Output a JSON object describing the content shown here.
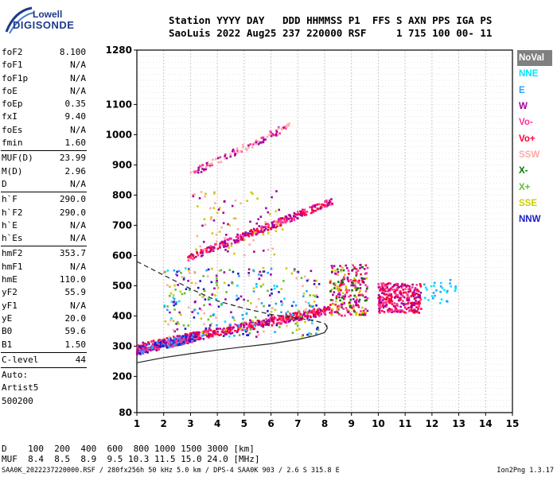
{
  "logo": {
    "line1": "Lowell",
    "line2": "DIGISONDE"
  },
  "header": {
    "line1": "Station YYYY DAY   DDD HHMMSS P1  FFS S AXN PPS IGA PS",
    "line2": "SaoLuis 2022 Aug25 237 220000 RSF     1 715 100 00- 11"
  },
  "params": [
    {
      "label": "foF2",
      "value": "8.100"
    },
    {
      "label": "foF1",
      "value": "N/A"
    },
    {
      "label": "foF1p",
      "value": "N/A"
    },
    {
      "label": "foE",
      "value": "N/A"
    },
    {
      "label": "foEp",
      "value": "0.35"
    },
    {
      "label": "fxI",
      "value": "9.40"
    },
    {
      "label": "foEs",
      "value": "N/A"
    },
    {
      "label": "fmin",
      "value": "1.60"
    },
    {
      "sep": true
    },
    {
      "label": "MUF(D)",
      "value": "23.99"
    },
    {
      "label": "M(D)",
      "value": "2.96"
    },
    {
      "label": "D",
      "value": "N/A"
    },
    {
      "sep": true
    },
    {
      "label": "h`F",
      "value": "290.0"
    },
    {
      "label": "h`F2",
      "value": "290.0"
    },
    {
      "label": "h`E",
      "value": "N/A"
    },
    {
      "label": "h`Es",
      "value": "N/A"
    },
    {
      "sep": true
    },
    {
      "label": "hmF2",
      "value": "353.7"
    },
    {
      "label": "hmF1",
      "value": "N/A"
    },
    {
      "label": "hmE",
      "value": "110.0"
    },
    {
      "label": "yF2",
      "value": "55.9"
    },
    {
      "label": "yF1",
      "value": "N/A"
    },
    {
      "label": "yE",
      "value": "20.0"
    },
    {
      "label": "B0",
      "value": "59.6"
    },
    {
      "label": "B1",
      "value": "1.50"
    },
    {
      "sep": true
    },
    {
      "label": "C-level",
      "value": "44"
    },
    {
      "sep": true
    },
    {
      "label": "Auto:",
      "value": ""
    },
    {
      "label": "Artist5",
      "value": ""
    },
    {
      "label": "500200",
      "value": ""
    }
  ],
  "legend": [
    {
      "label": "NoVal",
      "bg": "#808080",
      "fg": "#ffffff"
    },
    {
      "label": "NNE",
      "bg": "#ffffff",
      "fg": "#00e5ff"
    },
    {
      "label": "E",
      "bg": "#ffffff",
      "fg": "#29a3ff"
    },
    {
      "label": "W",
      "bg": "#ffffff",
      "fg": "#a000a0"
    },
    {
      "label": "Vo-",
      "bg": "#ffffff",
      "fg": "#ff3399"
    },
    {
      "label": "Vo+",
      "bg": "#ffffff",
      "fg": "#ff0033"
    },
    {
      "label": "SSW",
      "bg": "#ffffff",
      "fg": "#ffaaaa"
    },
    {
      "label": "X-",
      "bg": "#ffffff",
      "fg": "#007a00"
    },
    {
      "label": "X+",
      "bg": "#ffffff",
      "fg": "#66bb33"
    },
    {
      "label": "SSE",
      "bg": "#ffffff",
      "fg": "#cccc00"
    },
    {
      "label": "NNW",
      "bg": "#ffffff",
      "fg": "#1a1acc"
    }
  ],
  "muf_table": {
    "line1": "D    100  200  400  600  800 1000 1500 3000 [km]",
    "line2": "MUF  8.4  8.5  8.9  9.5 10.3 11.5 15.0 24.0 [MHz]"
  },
  "footer": "SAA0K_2022237220000.RSF / 280fx256h 50 kHz 5.0 km / DPS-4 SAA0K 903 / 2.6 S 315.8 E",
  "version": "Ion2Png 1.3.17",
  "chart_data": {
    "type": "scatter",
    "title": "",
    "xlabel": "",
    "ylabel": "",
    "xlim": [
      1,
      15
    ],
    "ylim": [
      80,
      1280
    ],
    "x_ticks": [
      1,
      2,
      3,
      4,
      5,
      6,
      7,
      8,
      9,
      10,
      11,
      12,
      13,
      14,
      15
    ],
    "y_ticks": [
      80,
      200,
      300,
      400,
      500,
      600,
      700,
      800,
      900,
      1000,
      1100,
      1280
    ],
    "grid": true,
    "clusters": [
      {
        "name": "o-trace main",
        "x": [
          1.0,
          8.2
        ],
        "y": [
          295,
          420
        ],
        "spread": 14,
        "density": 520,
        "colors": [
          "#ff0033",
          "#ff3399",
          "#a000a0",
          "#ff0033"
        ]
      },
      {
        "name": "trace low echoes",
        "x": [
          1.0,
          3.2
        ],
        "y": [
          285,
          330
        ],
        "spread": 14,
        "density": 260,
        "colors": [
          "#1a1acc",
          "#a000a0",
          "#29a3ff",
          "#ff3399"
        ]
      },
      {
        "name": "double-hop",
        "x": [
          2.9,
          8.3
        ],
        "y": [
          590,
          780
        ],
        "spread": 12,
        "density": 300,
        "colors": [
          "#ff0033",
          "#ff3399",
          "#a000a0"
        ]
      },
      {
        "name": "triple-hop",
        "x": [
          3.0,
          6.7
        ],
        "y": [
          870,
          1030
        ],
        "spread": 12,
        "density": 110,
        "colors": [
          "#a000a0",
          "#ff3399",
          "#ffaaaa"
        ]
      },
      {
        "name": "spread F1",
        "x": [
          8.2,
          9.6
        ],
        "y": [
          400,
          570
        ],
        "spread": 0,
        "density": 240,
        "colors": [
          "#a000a0",
          "#ff0033",
          "#cccc00",
          "#007a00",
          "#ff3399"
        ]
      },
      {
        "name": "spread F2",
        "x": [
          10.0,
          11.6
        ],
        "y": [
          410,
          510
        ],
        "spread": 0,
        "density": 300,
        "colors": [
          "#a000a0",
          "#ff3399",
          "#ff0033"
        ]
      },
      {
        "name": "scatter mid",
        "x": [
          2.0,
          7.8
        ],
        "y": [
          330,
          560
        ],
        "spread": 0,
        "density": 320,
        "colors": [
          "#cccc00",
          "#66bb33",
          "#29a3ff",
          "#00e5ff",
          "#ffaaaa",
          "#a000a0",
          "#1a1acc"
        ]
      },
      {
        "name": "scatter high",
        "x": [
          3.0,
          6.5
        ],
        "y": [
          600,
          820
        ],
        "spread": 0,
        "density": 90,
        "colors": [
          "#ffaaaa",
          "#a000a0",
          "#cccc00"
        ]
      },
      {
        "name": "east echoes",
        "x": [
          11.6,
          12.9
        ],
        "y": [
          440,
          520
        ],
        "spread": 0,
        "density": 30,
        "colors": [
          "#00e5ff",
          "#29a3ff"
        ]
      }
    ],
    "profile_solid": [
      [
        1.0,
        245
      ],
      [
        2.0,
        262
      ],
      [
        3.0,
        275
      ],
      [
        4.0,
        287
      ],
      [
        5.0,
        298
      ],
      [
        6.0,
        308
      ],
      [
        7.0,
        322
      ],
      [
        7.6,
        334
      ],
      [
        8.0,
        345
      ],
      [
        8.1,
        360
      ],
      [
        8.05,
        368
      ]
    ],
    "profile_dashed": [
      [
        1.0,
        580
      ],
      [
        2.0,
        535
      ],
      [
        3.0,
        490
      ],
      [
        4.0,
        450
      ],
      [
        5.0,
        425
      ],
      [
        6.0,
        405
      ],
      [
        7.0,
        392
      ],
      [
        7.6,
        385
      ],
      [
        8.0,
        375
      ],
      [
        8.1,
        365
      ]
    ]
  }
}
